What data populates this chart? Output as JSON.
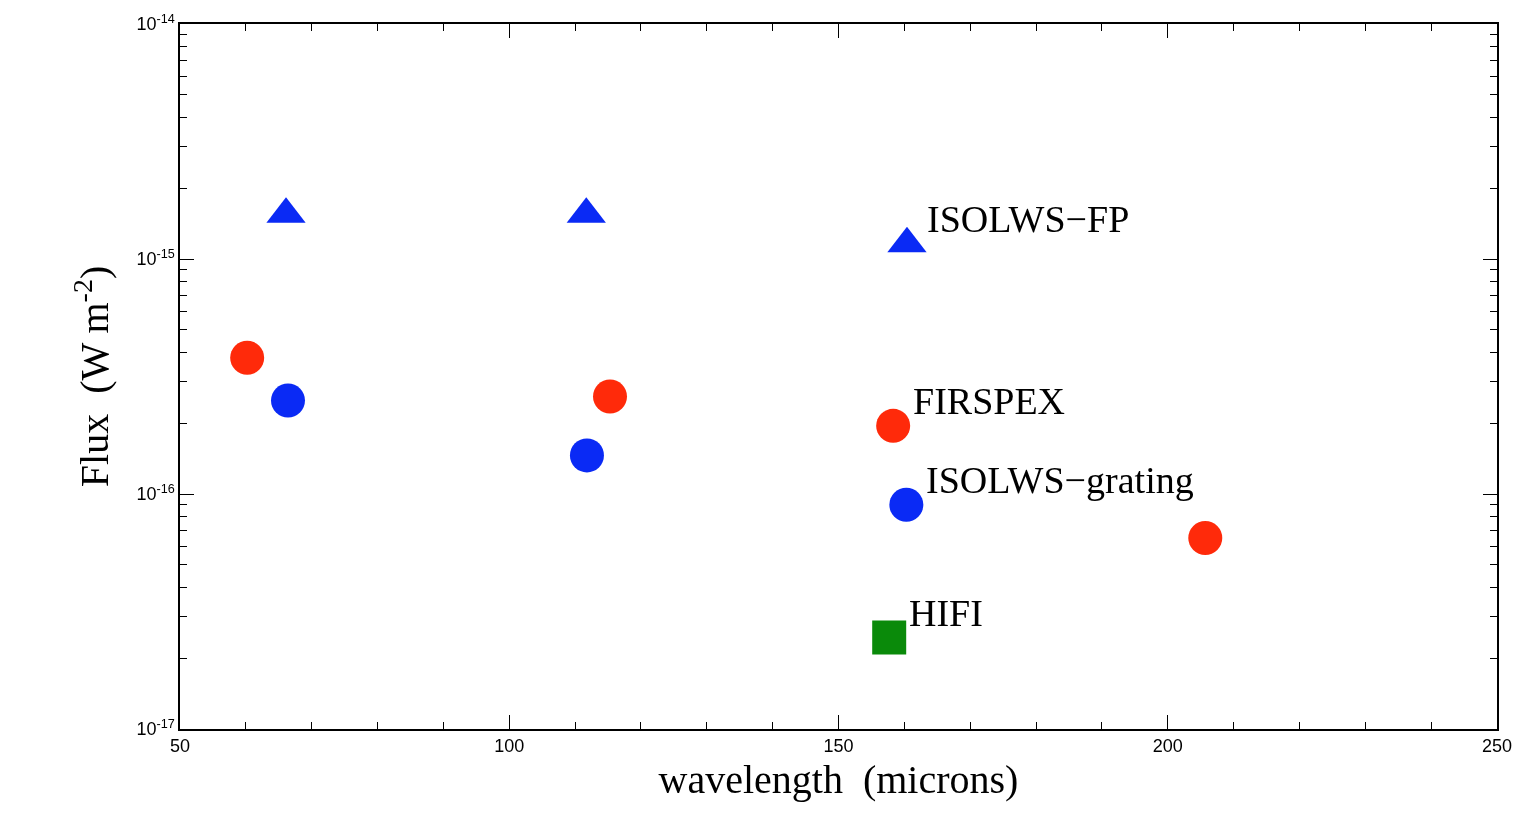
{
  "chart_data": {
    "type": "scatter",
    "xlabel": "wavelength  (microns)",
    "ylabel": "Flux  (W m$^{-2}$)",
    "log": "y",
    "xlim": [
      50,
      250
    ],
    "xticks": [
      50,
      100,
      150,
      200,
      250
    ],
    "ylim": [
      1e-17,
      1e-14
    ],
    "yticks": [
      {
        "value": 1e-17,
        "label": "10$^{-17}$"
      },
      {
        "value": 1e-16,
        "label": "10$^{-16}$"
      },
      {
        "value": 1e-15,
        "label": "10$^{-15}$"
      },
      {
        "value": 1e-14,
        "label": "10$^{-14}$"
      }
    ],
    "grid": false,
    "legend": false,
    "series": [
      {
        "name": "ISOLWS−FP",
        "color": "#0a2af5",
        "marker": "triangle",
        "x": [
          160.4,
          66.1,
          111.7
        ],
        "values": [
          1.16e-15,
          1.55e-15,
          1.55e-15
        ]
      },
      {
        "name": "FIRSPEX",
        "color": "#ff2a0a",
        "marker": "circle",
        "x": [
          158.3,
          60.2,
          115.3,
          205.7
        ],
        "values": [
          1.95e-16,
          3.8e-16,
          2.6e-16,
          6.5e-17
        ]
      },
      {
        "name": "ISOLWS−grating",
        "color": "#0a2af5",
        "marker": "circle",
        "x": [
          160.3,
          66.4,
          111.8
        ],
        "values": [
          9e-17,
          2.5e-16,
          1.46e-16
        ]
      },
      {
        "name": "HIFI",
        "color": "#0a8a0a",
        "marker": "square",
        "x": [
          157.7
        ],
        "values": [
          2.45e-17
        ]
      }
    ]
  }
}
